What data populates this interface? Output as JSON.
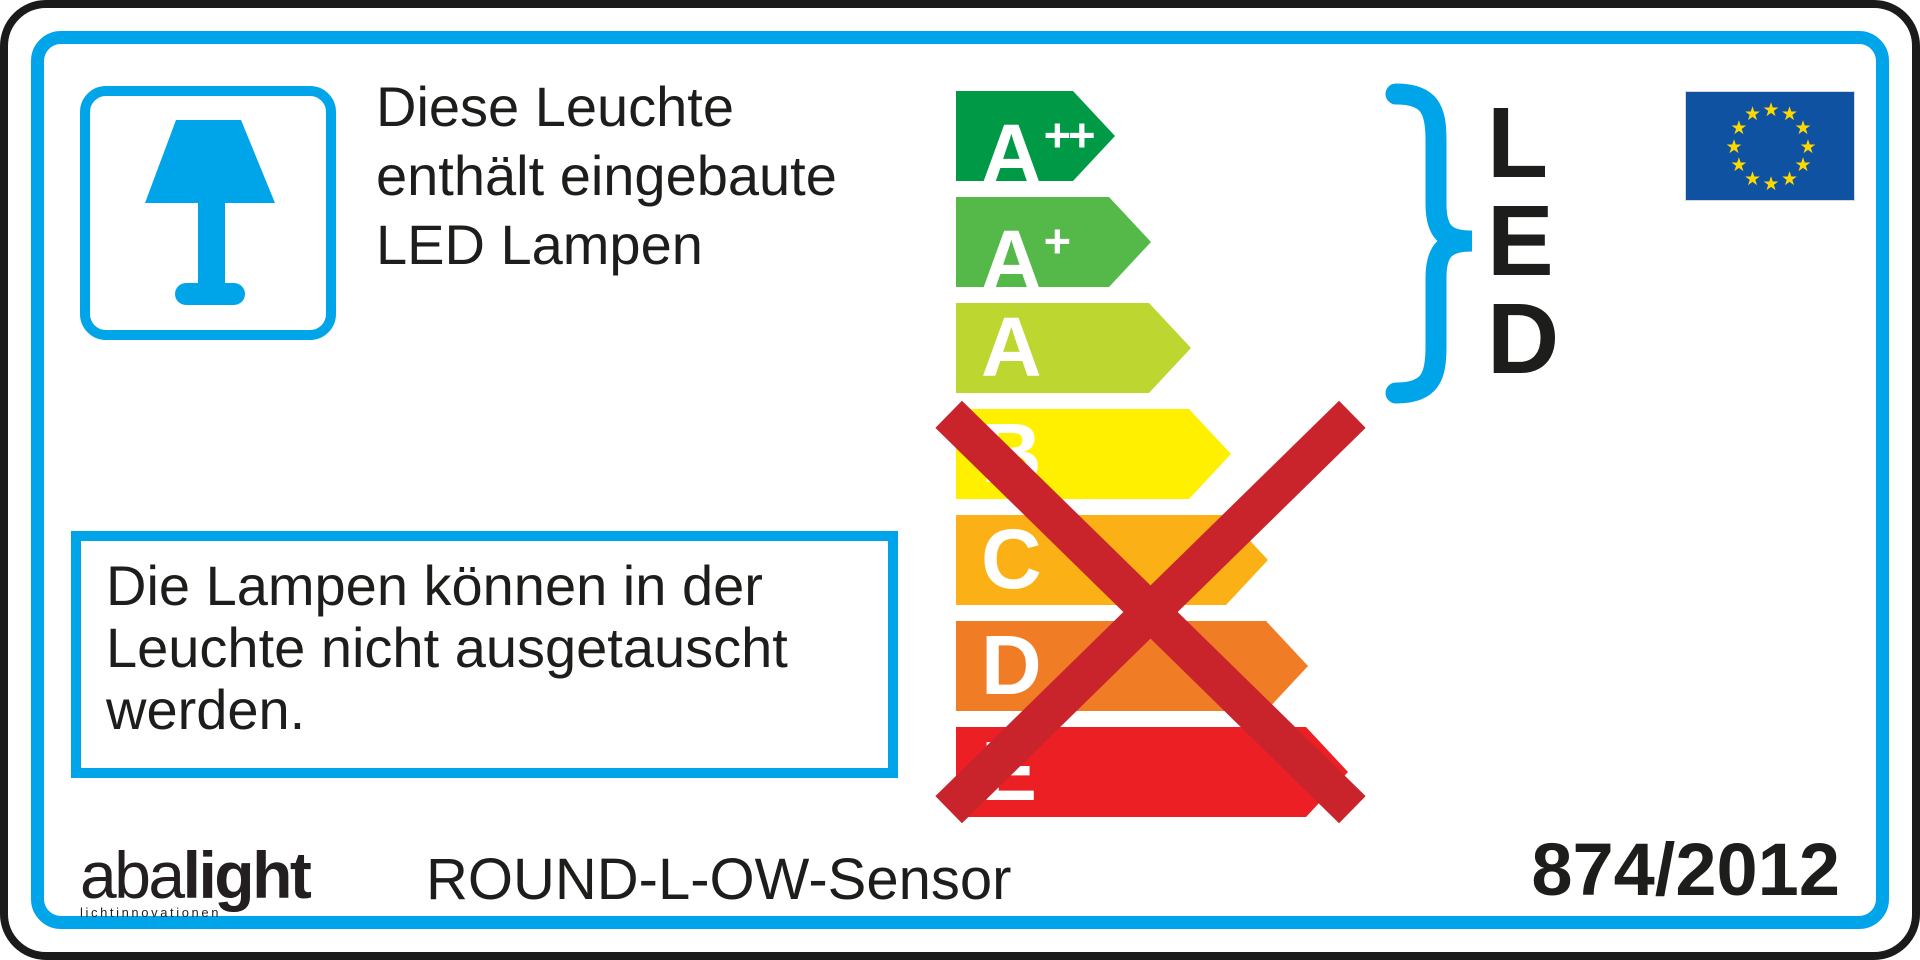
{
  "colors": {
    "accent_blue": "#00a5e9",
    "cross_red": "#c9242b",
    "ink_black": "#1d1d1b",
    "arrow_letter_white": "#ffffff",
    "eu_flag_blue": "#1052a2",
    "eu_star_yellow": "#ffd800"
  },
  "lamp_notice": {
    "lines": [
      "Diese Leuchte",
      "enthält eingebaute",
      "LED Lampen"
    ]
  },
  "replace_notice": {
    "lines": [
      "Die Lampen können in der",
      "Leuchte nicht ausgetauscht",
      "werden."
    ]
  },
  "energy_scale": {
    "classes": [
      {
        "grade": "A",
        "sup": "++",
        "color": "#009a47",
        "crossed": false
      },
      {
        "grade": "A",
        "sup": "+",
        "color": "#54b948",
        "crossed": false
      },
      {
        "grade": "A",
        "sup": "",
        "color": "#bed730",
        "crossed": false
      },
      {
        "grade": "B",
        "sup": "",
        "color": "#fff000",
        "crossed": true
      },
      {
        "grade": "C",
        "sup": "",
        "color": "#fbb116",
        "crossed": true
      },
      {
        "grade": "D",
        "sup": "",
        "color": "#f07d26",
        "crossed": true
      },
      {
        "grade": "E",
        "sup": "",
        "color": "#ec2024",
        "crossed": true
      }
    ],
    "led_mark": "LED"
  },
  "eu_flag": {
    "star_count": 12
  },
  "footer": {
    "brand_prefix": "aba",
    "brand_suffix": "light",
    "brand_tagline": "lichtinnovationen",
    "model": "ROUND-L-OW-Sensor",
    "regulation": "874/2012"
  }
}
